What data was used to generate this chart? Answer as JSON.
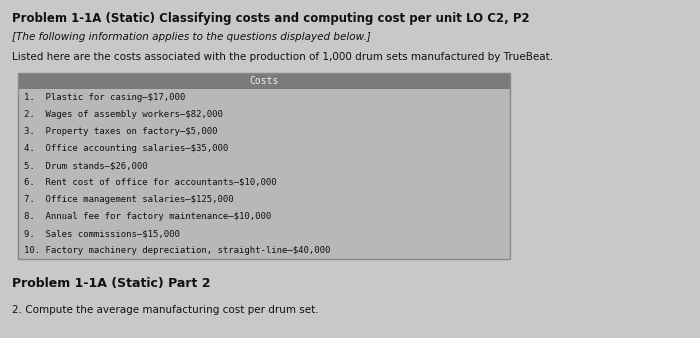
{
  "title": "Problem 1-1A (Static) Classifying costs and computing cost per unit LO C2, P2",
  "subtitle": "[The following information applies to the questions displayed below.]",
  "intro": "Listed here are the costs associated with the production of 1,000 drum sets manufactured by TrueBeat.",
  "table_header": "Costs",
  "table_rows": [
    "1.  Plastic for casing–$17,000",
    "2.  Wages of assembly workers–$82,000",
    "3.  Property taxes on factory–$5,000",
    "4.  Office accounting salaries–$35,000",
    "5.  Drum stands–$26,000",
    "6.  Rent cost of office for accountants–$10,000",
    "7.  Office management salaries–$125,000",
    "8.  Annual fee for factory maintenance–$10,000",
    "9.  Sales commissions–$15,000",
    "10. Factory machinery depreciation, straight-line–$40,000"
  ],
  "part2_header": "Problem 1-1A (Static) Part 2",
  "part2_question": "2. Compute the average manufacturing cost per drum set.",
  "bg_color": "#c8c8c8",
  "table_header_bg": "#7a7a7a",
  "table_header_color": "#f0f0f0",
  "table_row_bg": "#b8b8b8",
  "table_border_color": "#888888",
  "text_color": "#111111",
  "title_fontsize": 8.5,
  "subtitle_fontsize": 7.5,
  "intro_fontsize": 7.5,
  "table_fontsize": 6.5,
  "table_header_fontsize": 7.0,
  "part2_header_fontsize": 9.0,
  "part2_q_fontsize": 7.5
}
